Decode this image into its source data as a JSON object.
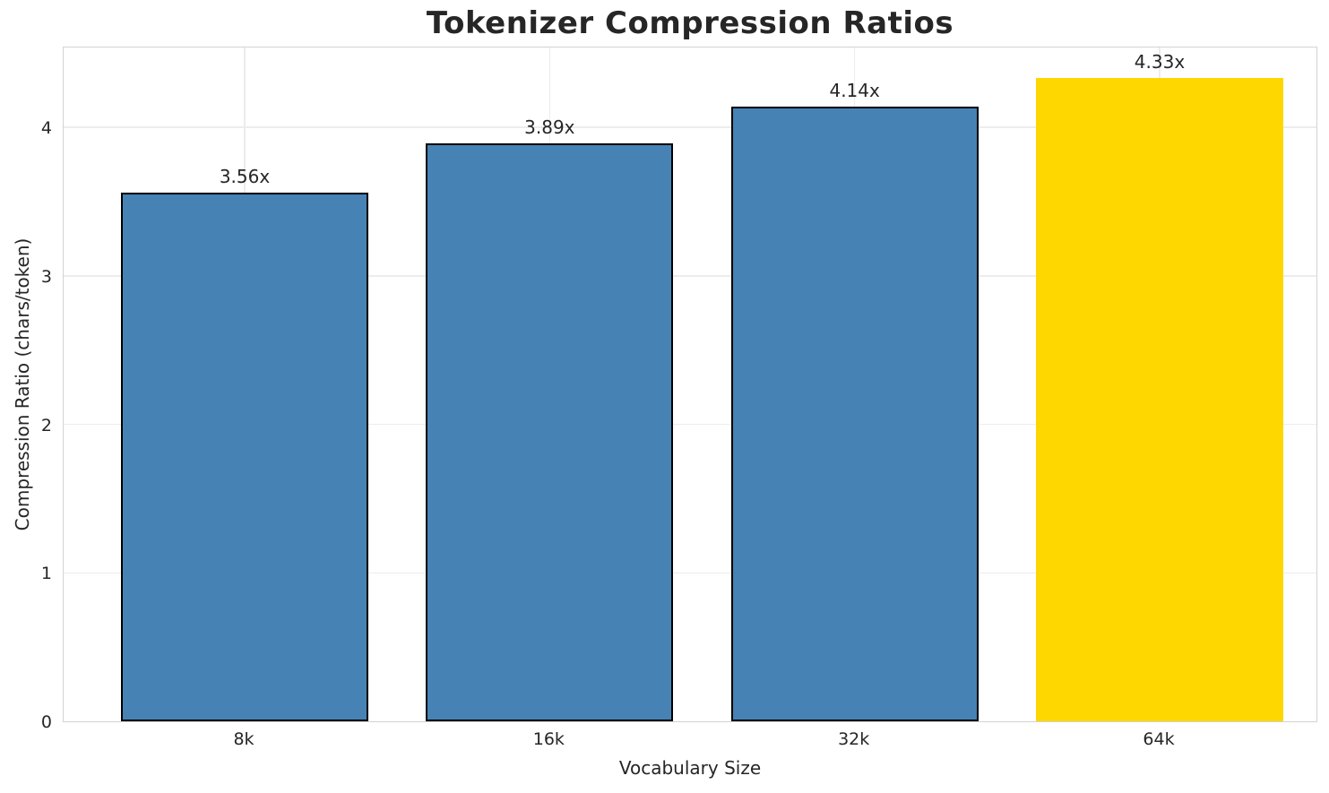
{
  "chart_data": {
    "type": "bar",
    "title": "Tokenizer Compression Ratios",
    "xlabel": "Vocabulary Size",
    "ylabel": "Compression Ratio (chars/token)",
    "categories": [
      "8k",
      "16k",
      "32k",
      "64k"
    ],
    "values": [
      3.56,
      3.89,
      4.14,
      4.33
    ],
    "bar_labels": [
      "3.56x",
      "3.89x",
      "4.14x",
      "4.33x"
    ],
    "bar_colors": [
      "#4682b4",
      "#4682b4",
      "#4682b4",
      "#ffd700"
    ],
    "bar_edge_colors": [
      "#000000",
      "#000000",
      "#000000",
      "none"
    ],
    "highlight_category": "64k",
    "yticks": [
      0,
      1,
      2,
      3,
      4
    ],
    "ylim": [
      0,
      4.55
    ],
    "grid": true,
    "legend_position": "none",
    "colors": {
      "bar_default": "#4682b4",
      "bar_highlight": "#ffd700",
      "text": "#262626",
      "grid": "#ececec",
      "spine": "#d3d3d3",
      "background": "#ffffff"
    }
  }
}
